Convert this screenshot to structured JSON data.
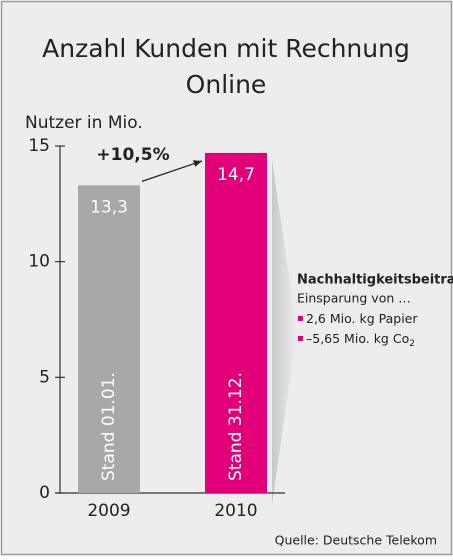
{
  "chart_data": {
    "type": "bar",
    "title": [
      "Anzahl Kunden mit Rechnung",
      "Online"
    ],
    "y_label": "Nutzer in Mio.",
    "categories": [
      "2009",
      "2010"
    ],
    "values": [
      13.3,
      14.7
    ],
    "value_labels": [
      "13,3",
      "14,7"
    ],
    "bar_labels": [
      "Stand 01.01.",
      "Stand 31.12."
    ],
    "colors": [
      "#a7a8aa",
      "#e2007a"
    ],
    "growth_label": "+10,5%",
    "ylim": [
      0,
      15
    ],
    "yticks": [
      0,
      5,
      10,
      15
    ],
    "grid": false,
    "note": {
      "heading": "Nachhaltigkeitsbeitrag",
      "intro": "Einsparung von …",
      "bullets": [
        {
          "text": "2,6 Mio. kg Papier"
        },
        {
          "text": "–5,65 Mio. kg Co",
          "sub": "2"
        }
      ],
      "bullet_color": "#e2007a"
    },
    "source": "Quelle: Deutsche Telekom"
  }
}
